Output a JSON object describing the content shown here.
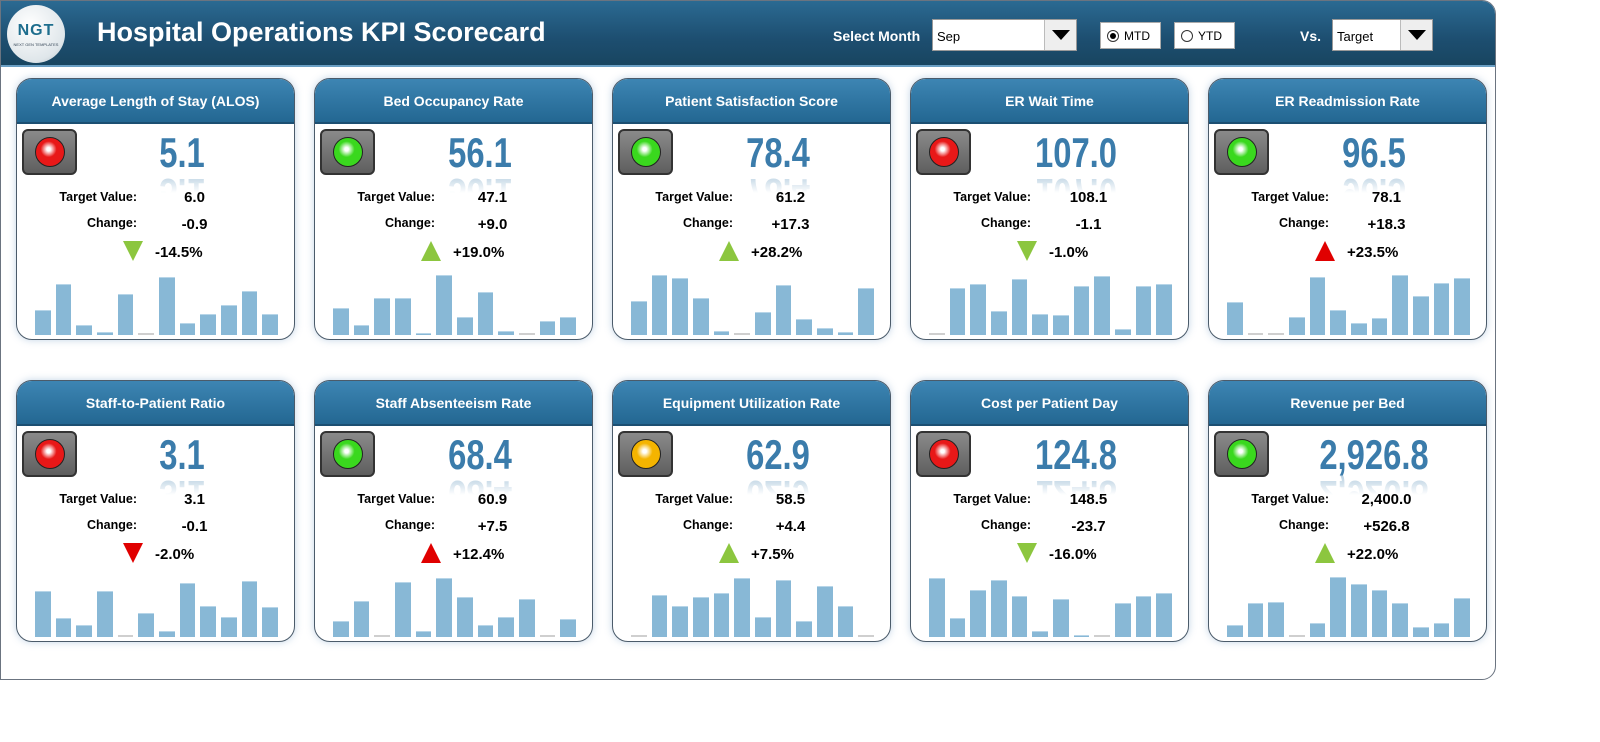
{
  "header": {
    "logo_text": "NGT",
    "logo_subtext": "NEXT GEN TEMPLATES",
    "title": "Hospital Operations KPI Scorecard",
    "select_month_label": "Select Month",
    "month_value": "Sep",
    "radio_mtd": "MTD",
    "radio_ytd": "YTD",
    "selected_period": "MTD",
    "vs_label": "Vs.",
    "vs_value": "Target"
  },
  "colors": {
    "red": "#e81818",
    "green": "#3ad81e",
    "amber": "#f4b400",
    "arrow_green": "#8cc63f",
    "arrow_red": "#e00000"
  },
  "target_label": "Target Value:",
  "change_label": "Change:",
  "kpis": [
    {
      "title": "Average Length of Stay (ALOS)",
      "value": "5.1",
      "target": "6.0",
      "change": "-0.9",
      "pct": "-14.5%",
      "status": "red",
      "arrow": "down",
      "arrow_color": "green",
      "trend": [
        24,
        49,
        10,
        3,
        40,
        0,
        56,
        12,
        20,
        29,
        43,
        20
      ]
    },
    {
      "title": "Bed Occupancy Rate",
      "value": "56.1",
      "target": "47.1",
      "change": "+9.0",
      "pct": "+19.0%",
      "status": "green",
      "arrow": "up",
      "arrow_color": "green",
      "trend": [
        26,
        10,
        36,
        36,
        2,
        58,
        17,
        42,
        4,
        0,
        14,
        17
      ]
    },
    {
      "title": "Patient Satisfaction Score",
      "value": "78.4",
      "target": "61.2",
      "change": "+17.3",
      "pct": "+28.2%",
      "status": "green",
      "arrow": "up",
      "arrow_color": "green",
      "trend": [
        33,
        58,
        55,
        36,
        4,
        0,
        22,
        48,
        15,
        7,
        3,
        45
      ]
    },
    {
      "title": "ER Wait Time",
      "value": "107.0",
      "target": "108.1",
      "change": "-1.1",
      "pct": "-1.0%",
      "status": "red",
      "arrow": "down",
      "arrow_color": "green",
      "trend": [
        0,
        45,
        49,
        23,
        54,
        20,
        19,
        47,
        57,
        6,
        47,
        49
      ]
    },
    {
      "title": "ER Readmission Rate",
      "value": "96.5",
      "target": "78.1",
      "change": "+18.3",
      "pct": "+23.5%",
      "status": "green",
      "arrow": "up",
      "arrow_color": "red",
      "trend": [
        32,
        0,
        0,
        17,
        56,
        24,
        12,
        16,
        58,
        38,
        50,
        55
      ]
    },
    {
      "title": "Staff-to-Patient Ratio",
      "value": "3.1",
      "target": "3.1",
      "change": "-0.1",
      "pct": "-2.0%",
      "status": "red",
      "arrow": "down",
      "arrow_color": "red",
      "trend": [
        44,
        18,
        12,
        44,
        0,
        23,
        6,
        52,
        30,
        19,
        54,
        29
      ]
    },
    {
      "title": "Staff Absenteeism Rate",
      "value": "68.4",
      "target": "60.9",
      "change": "+7.5",
      "pct": "+12.4%",
      "status": "green",
      "arrow": "up",
      "arrow_color": "red",
      "trend": [
        15,
        35,
        0,
        53,
        6,
        57,
        39,
        12,
        19,
        37,
        0,
        17
      ]
    },
    {
      "title": "Equipment Utilization Rate",
      "value": "62.9",
      "target": "58.5",
      "change": "+4.4",
      "pct": "+7.5%",
      "status": "amber",
      "arrow": "up",
      "arrow_color": "green",
      "trend": [
        0,
        41,
        30,
        39,
        43,
        57,
        19,
        55,
        15,
        49,
        30,
        0
      ]
    },
    {
      "title": "Cost per Patient Day",
      "value": "124.8",
      "target": "148.5",
      "change": "-23.7",
      "pct": "-16.0%",
      "status": "red",
      "arrow": "down",
      "arrow_color": "green",
      "trend": [
        57,
        18,
        45,
        55,
        40,
        6,
        37,
        2,
        0,
        33,
        40,
        43
      ]
    },
    {
      "title": "Revenue per Bed",
      "value": "2,926.8",
      "target": "2,400.0",
      "change": "+526.8",
      "pct": "+22.0%",
      "status": "green",
      "arrow": "up",
      "arrow_color": "green",
      "trend": [
        12,
        33,
        34,
        0,
        14,
        58,
        51,
        45,
        33,
        10,
        14,
        38
      ]
    }
  ]
}
